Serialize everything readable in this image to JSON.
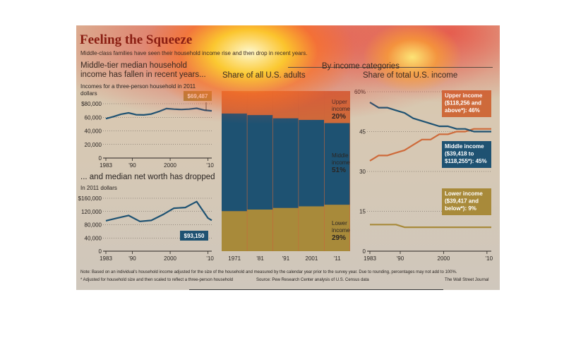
{
  "header": {
    "title": "Feeling the Squeeze",
    "subtitle": "Middle-class families have seen their household income rise and then drop in recent years."
  },
  "left_top": {
    "heading": "Middle-tier median household income has fallen in recent years...",
    "units": "Incomes for a three-person household in 2011 dollars",
    "callout": "$69,487"
  },
  "left_bottom": {
    "heading": "... and median net worth has dropped",
    "units": "In 2011 dollars",
    "callout": "$93,150"
  },
  "middle": {
    "by_income_heading": "By income categories",
    "heading": "Share of all U.S. adults",
    "labels": {
      "upper": [
        "Upper",
        "income",
        "20%"
      ],
      "middle": [
        "Middle",
        "income",
        "51%"
      ],
      "lower": [
        "Lower",
        "income",
        "29%"
      ]
    }
  },
  "right": {
    "heading": "Share of total U.S. income",
    "callouts": {
      "upper": [
        "Upper income",
        "($118,256 and",
        "above*): 46%"
      ],
      "middle": [
        "Middle income",
        "($39,418 to",
        "$118,255*): 45%"
      ],
      "lower": [
        "Lower income",
        "($39,417 and",
        "below*): 9%"
      ]
    }
  },
  "footer": {
    "note": "Note: Based on an individual's household income adjusted for the size of the household and measured by the calendar year prior to the survey year. Due to rounding, percentages may not add to 100%.",
    "footnote": "* Adjusted for household size and then scaled to reflect a three-person household",
    "source": "Source: Pew Research Center analysis of U.S. Census data",
    "credit": "The Wall Street Journal"
  },
  "colors": {
    "upper": "#ce6a3a",
    "middle": "#1e5272",
    "lower": "#a88a3a",
    "line": "#1e5272",
    "title": "#8a1e12"
  },
  "chart_data": [
    {
      "type": "line",
      "title": "Middle-tier median household income",
      "xlabels": [
        "1983",
        "'90",
        "2000",
        "'10"
      ],
      "ytick_labels": [
        "0",
        "20,000",
        "40,000",
        "60,000",
        "$80,000"
      ],
      "ylim": [
        0,
        80000
      ],
      "x": [
        1983,
        1985,
        1987,
        1989,
        1991,
        1993,
        1995,
        1997,
        1999,
        2001,
        2003,
        2005,
        2007,
        2009,
        2011
      ],
      "series": [
        {
          "values": [
            58000,
            61000,
            64500,
            66500,
            63800,
            63500,
            64800,
            68500,
            72800,
            72000,
            71500,
            72000,
            73200,
            70500,
            69487
          ]
        }
      ]
    },
    {
      "type": "line",
      "title": "Median net worth",
      "xlabels": [
        "1983",
        "'90",
        "2000",
        "'10"
      ],
      "ytick_labels": [
        "0",
        "40,000",
        "80,000",
        "120,000",
        "$160,000"
      ],
      "ylim": [
        0,
        160000
      ],
      "x": [
        1983,
        1986,
        1989,
        1992,
        1995,
        1998,
        2001,
        2004,
        2007,
        2010,
        2011
      ],
      "series": [
        {
          "values": [
            92000,
            100000,
            108000,
            90000,
            93000,
            110000,
            130000,
            132000,
            150000,
            100000,
            93150
          ]
        }
      ]
    },
    {
      "type": "bar",
      "title": "Share of all U.S. adults",
      "categories": [
        "1971",
        "'81",
        "'91",
        "2001",
        "'11"
      ],
      "series": [
        {
          "name": "Lower income",
          "values": [
            25,
            26,
            27,
            28,
            29
          ]
        },
        {
          "name": "Middle income",
          "values": [
            61,
            59,
            56,
            54,
            51
          ]
        },
        {
          "name": "Upper income",
          "values": [
            14,
            15,
            17,
            18,
            20
          ]
        }
      ],
      "ylim": [
        0,
        100
      ]
    },
    {
      "type": "line",
      "title": "Share of total U.S. income",
      "xlabels": [
        "1983",
        "'90",
        "2000",
        "'10"
      ],
      "ytick_labels": [
        "0",
        "15",
        "30",
        "45",
        "60%"
      ],
      "ylim": [
        0,
        60
      ],
      "x": [
        1983,
        1985,
        1987,
        1989,
        1991,
        1993,
        1995,
        1997,
        1999,
        2001,
        2003,
        2005,
        2007,
        2009,
        2011
      ],
      "series": [
        {
          "name": "Upper income",
          "values": [
            34,
            36,
            36,
            37,
            38,
            40,
            42,
            42,
            44,
            44,
            45,
            45,
            46,
            46,
            46
          ]
        },
        {
          "name": "Middle income",
          "values": [
            56,
            54,
            54,
            53,
            52,
            50,
            49,
            48,
            47,
            47,
            46,
            46,
            45,
            45,
            45
          ]
        },
        {
          "name": "Lower income",
          "values": [
            10,
            10,
            10,
            10,
            9,
            9,
            9,
            9,
            9,
            9,
            9,
            9,
            9,
            9,
            9
          ]
        }
      ]
    }
  ]
}
